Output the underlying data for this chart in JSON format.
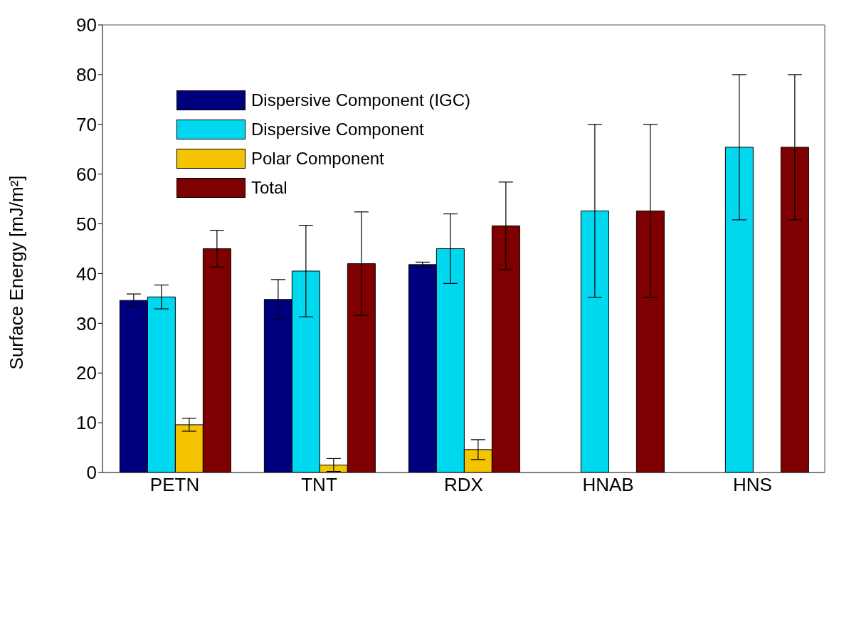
{
  "chart_data": {
    "type": "bar",
    "ylabel": "Surface Energy [mJ/m²]",
    "categories": [
      "PETN",
      "TNT",
      "RDX",
      "HNAB",
      "HNS"
    ],
    "ylim": [
      0,
      90
    ],
    "yticks": [
      0,
      10,
      20,
      30,
      40,
      50,
      60,
      70,
      80,
      90
    ],
    "legend": "top left",
    "series": [
      {
        "name": "Dispersive Component (IGC)",
        "color": "#00007f",
        "values": [
          34.6,
          34.8,
          41.8,
          null,
          null
        ],
        "errors": [
          1.3,
          4,
          0.5,
          null,
          null
        ]
      },
      {
        "name": "Dispersive Component",
        "color": "#00d8f0",
        "values": [
          35.3,
          40.5,
          45,
          52.6,
          65.4
        ],
        "errors": [
          2.4,
          9.2,
          7,
          17.4,
          14.6
        ]
      },
      {
        "name": "Polar Component",
        "color": "#f5c400",
        "values": [
          9.6,
          1.5,
          4.6,
          null,
          null
        ],
        "errors": [
          1.3,
          1.3,
          2,
          null,
          null
        ]
      },
      {
        "name": "Total",
        "color": "#7f0000",
        "values": [
          45,
          42,
          49.6,
          52.6,
          65.4
        ],
        "errors": [
          3.7,
          10.4,
          8.8,
          17.4,
          14.6
        ]
      }
    ]
  }
}
